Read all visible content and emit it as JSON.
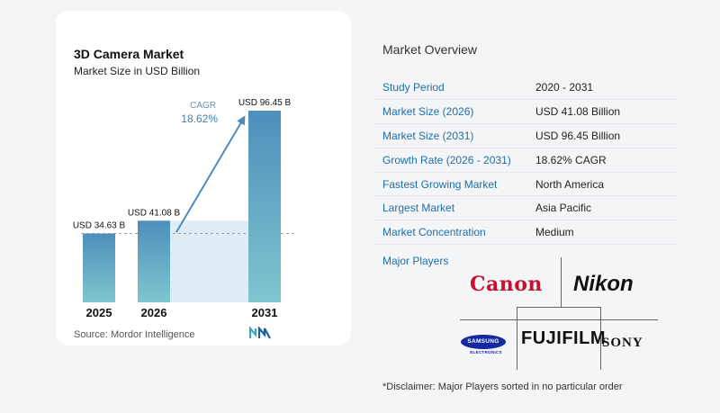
{
  "chart_data": {
    "type": "bar",
    "title": "3D Camera Market",
    "subtitle": "Market Size in USD Billion",
    "categories": [
      "2025",
      "2026",
      "2031"
    ],
    "values": [
      34.63,
      41.08,
      96.45
    ],
    "value_labels": [
      "USD 34.63 B",
      "USD 41.08 B",
      "USD 96.45 B"
    ],
    "cagr_label": "CAGR",
    "cagr_value": "18.62%",
    "colors": {
      "bar_top": "#4d8fbc",
      "bar_bottom": "#7ec6cf",
      "arrow": "#4a8cc0",
      "shade": "#e1ebf4"
    }
  },
  "source": "Source:  Mordor Intelligence",
  "overview": {
    "title": "Market Overview",
    "rows": [
      {
        "key": "Study Period",
        "value": "2020 - 2031"
      },
      {
        "key": "Market Size (2026)",
        "value": "USD 41.08 Billion"
      },
      {
        "key": "Market Size (2031)",
        "value": "USD 96.45 Billion"
      },
      {
        "key": "Growth Rate (2026 - 2031)",
        "value": "18.62% CAGR"
      },
      {
        "key": "Fastest Growing Market",
        "value": "North America"
      },
      {
        "key": "Largest Market",
        "value": "Asia Pacific"
      },
      {
        "key": "Market Concentration",
        "value": "Medium"
      }
    ]
  },
  "major_players_label": "Major Players",
  "players": {
    "canon": "Canon",
    "nikon": "Nikon",
    "samsung": "SAMSUNG",
    "samsung_sub": "ELECTRONICS",
    "fujifilm": "FUJIFILM",
    "sony": "SONY"
  },
  "disclaimer": "*Disclaimer: Major Players sorted in no particular order"
}
